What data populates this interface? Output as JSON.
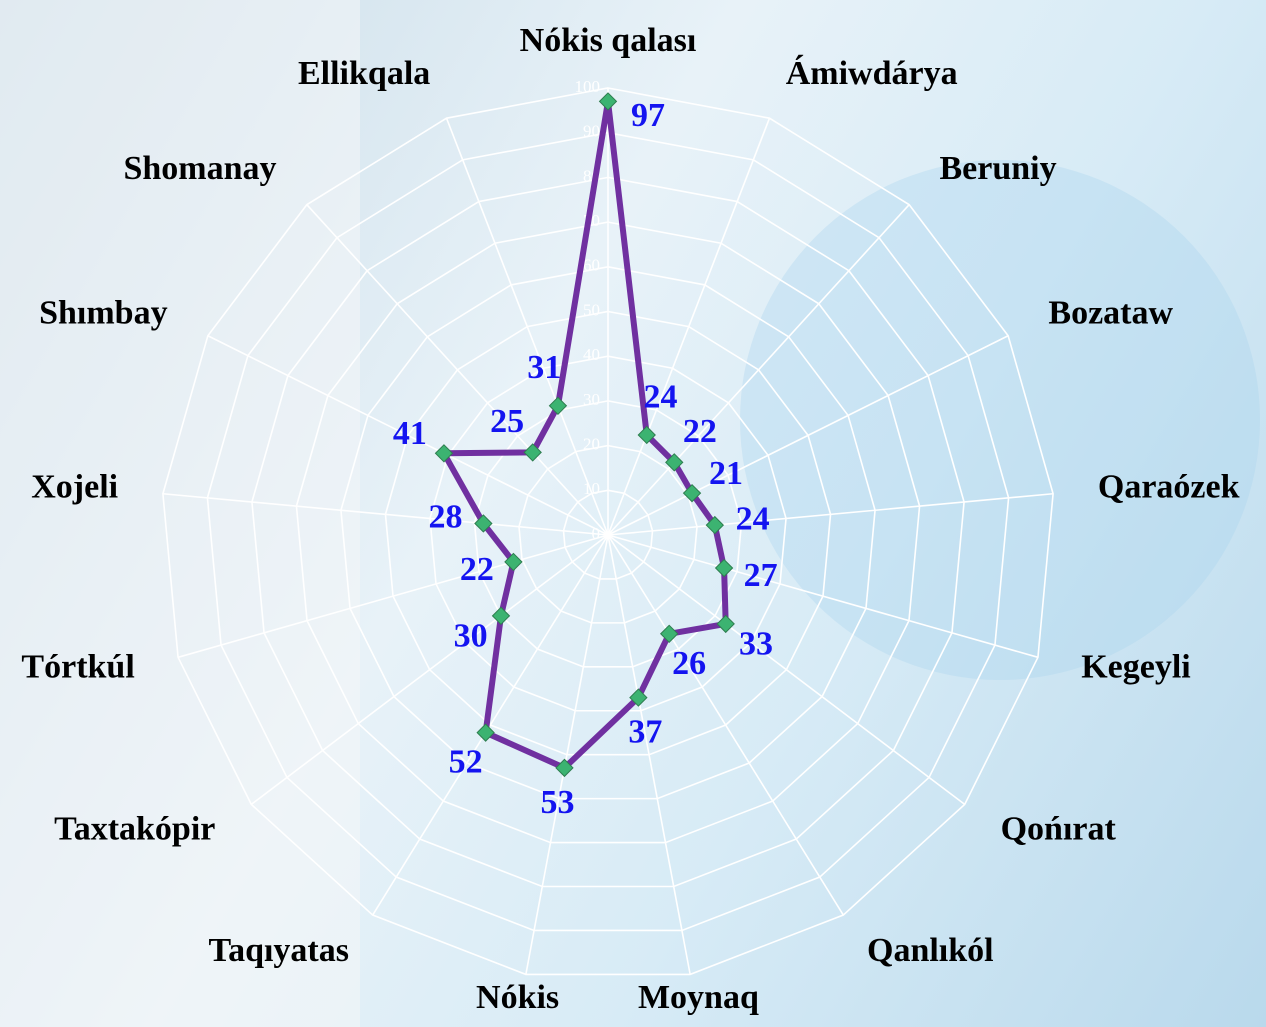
{
  "chart_data": {
    "type": "radar",
    "categories": [
      "Nókis qalası",
      "Ámiwdárya",
      "Beruniy",
      "Bozataw",
      "Qaraózek",
      "Kegeyli",
      "Qońırat",
      "Qanlıkól",
      "Moynaq",
      "Nókis",
      "Taqıyatas",
      "Taxtakópir",
      "Tórtkúl",
      "Xojeli",
      "Shımbay",
      "Shomanay",
      "Ellikqala"
    ],
    "values": [
      97,
      24,
      22,
      21,
      24,
      27,
      33,
      26,
      37,
      53,
      52,
      30,
      22,
      28,
      41,
      25,
      31
    ],
    "color": "#7030a0",
    "marker_color": "#3cb371",
    "label_color": "#1414f0",
    "ylim": [
      0,
      100
    ],
    "yticks": [
      0,
      10,
      20,
      30,
      40,
      50,
      60,
      70,
      80,
      90,
      100
    ],
    "grid": true
  }
}
